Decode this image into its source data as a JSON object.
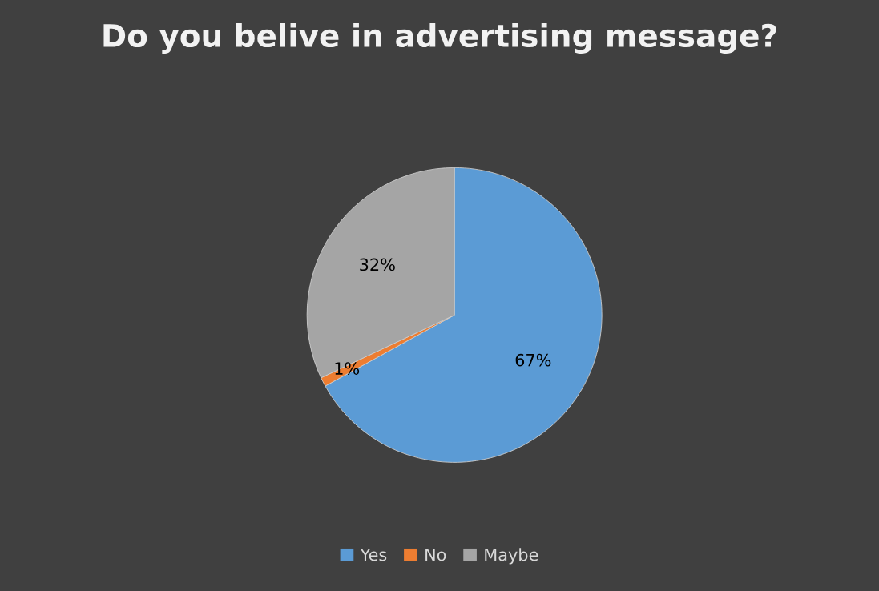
{
  "chart_data": {
    "type": "pie",
    "title": "Do you belive in advertising message?",
    "categories": [
      "Yes",
      "No",
      "Maybe"
    ],
    "values": [
      67,
      1,
      32
    ],
    "colors": [
      "#5b9bd5",
      "#ed7d31",
      "#a5a5a5"
    ],
    "value_labels": [
      "67%",
      "1%",
      "32%"
    ],
    "legend": "bottom"
  }
}
